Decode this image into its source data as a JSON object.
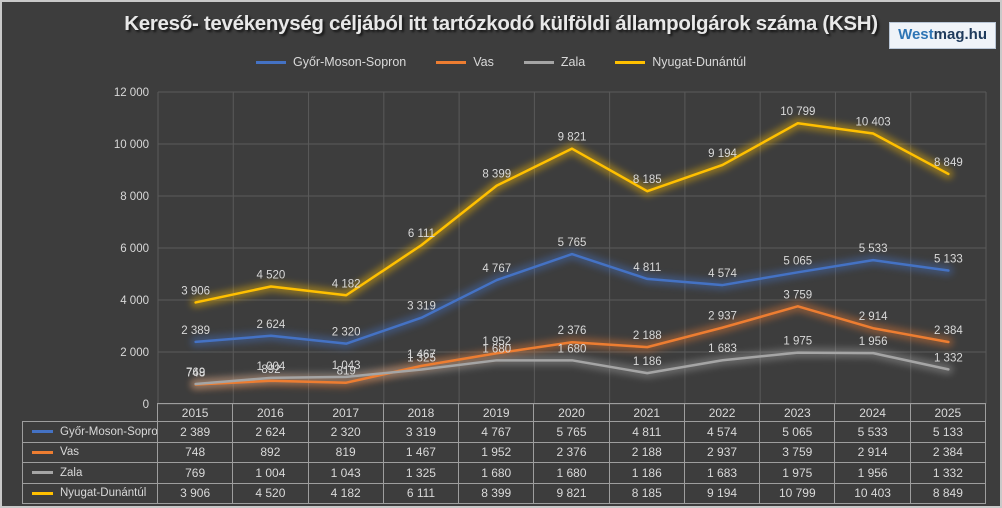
{
  "title": "Kereső- tevékenység céljából itt tartózkodó külföldi állampolgárok száma (KSH)",
  "logo": {
    "text_primary": "West",
    "text_secondary": "mag.hu"
  },
  "colors": {
    "background": "#3D3D3D",
    "frame": "#C9C9C9",
    "gridline": "#5A5A5A",
    "axis_text": "#D9D9D9",
    "data_label_text": "#D9D9D9",
    "table_border": "#9E9E9E",
    "title_text": "#E8E8E8",
    "logo_bg": "#EFF3F8",
    "logo_west": "#2E75B5",
    "logo_mag": "#1E3A5C",
    "series_blue": "#4472C4",
    "series_orange": "#ED7D31",
    "series_gray": "#A5A5A5",
    "series_yellow": "#FFC000"
  },
  "chart_data": {
    "type": "line",
    "title": "Kereső- tevékenység céljából itt tartózkodó külföldi állampolgárok száma (KSH)",
    "categories": [
      "2015",
      "2016",
      "2017",
      "2018",
      "2019",
      "2020",
      "2021",
      "2022",
      "2023",
      "2024",
      "2025"
    ],
    "series": [
      {
        "name": "Győr-Moson-Sopron",
        "color": "#4472C4",
        "values": [
          2389,
          2624,
          2320,
          3319,
          4767,
          5765,
          4811,
          4574,
          5065,
          5533,
          5133
        ]
      },
      {
        "name": "Vas",
        "color": "#ED7D31",
        "values": [
          748,
          892,
          819,
          1467,
          1952,
          2376,
          2188,
          2937,
          3759,
          2914,
          2384
        ]
      },
      {
        "name": "Zala",
        "color": "#A5A5A5",
        "values": [
          769,
          1004,
          1043,
          1325,
          1680,
          1680,
          1186,
          1683,
          1975,
          1956,
          1332
        ]
      },
      {
        "name": "Nyugat-Dunántúl",
        "color": "#FFC000",
        "values": [
          3906,
          4520,
          4182,
          6111,
          8399,
          9821,
          8185,
          9194,
          10799,
          10403,
          8849
        ]
      }
    ],
    "ylim": [
      0,
      12000
    ],
    "ytick_step": 2000,
    "ytick_labels": [
      "0",
      "2 000",
      "4 000",
      "6 000",
      "8 000",
      "10 000",
      "12 000"
    ],
    "xlabel": "",
    "ylabel": "",
    "grid": true,
    "legend_position": "top",
    "data_labels": true,
    "data_table_shown": true,
    "number_format": "space-thousands-separator"
  }
}
